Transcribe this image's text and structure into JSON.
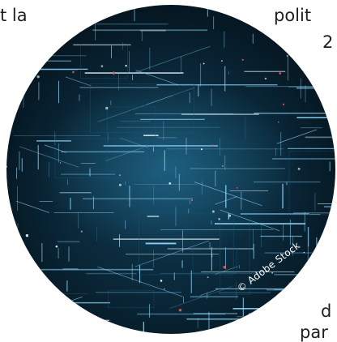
{
  "text_fragments": {
    "top_left": "t la",
    "top_right_1": "polit",
    "top_right_2": "2",
    "bottom_right_1": "d",
    "bottom_right_2": "par"
  },
  "image": {
    "subject": "abstract-digital-data-grid",
    "credit": "© Adobe Stock",
    "colors": {
      "background": "#07202f",
      "glow": "#1b5b79",
      "line": "#8fd8ff",
      "line_bright": "#e6f7ff",
      "accent_red": "#ff5a5a"
    }
  }
}
